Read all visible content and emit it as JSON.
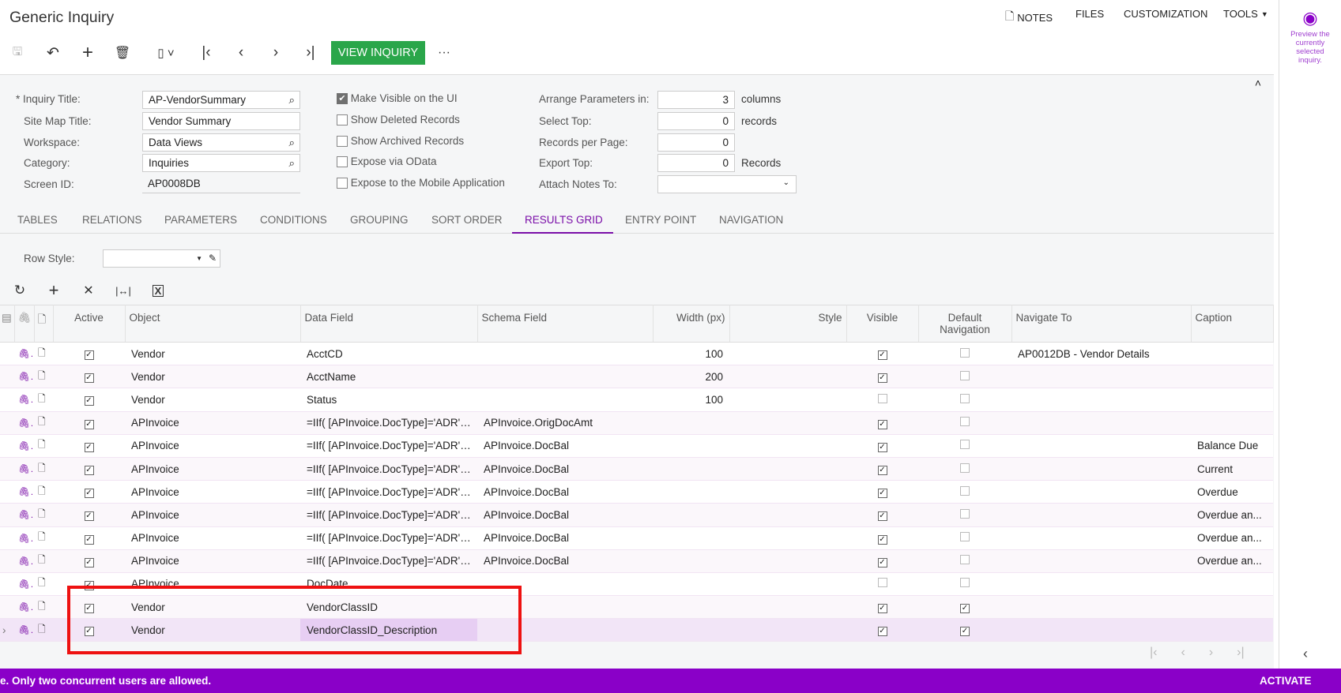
{
  "header": {
    "title": "Generic Inquiry",
    "notes": "NOTES",
    "files": "FILES",
    "customization": "CUSTOMIZATION",
    "tools": "TOOLS"
  },
  "toolbar": {
    "view_inquiry": "VIEW INQUIRY",
    "more": "···"
  },
  "right_panel": {
    "preview_text": "Preview the currently selected inquiry.",
    "accent": "#8a00c8"
  },
  "form": {
    "inquiry_title_label": "Inquiry Title:",
    "inquiry_title": "AP-VendorSummary",
    "site_map_title_label": "Site Map Title:",
    "site_map_title": "Vendor Summary",
    "workspace_label": "Workspace:",
    "workspace": "Data Views",
    "category_label": "Category:",
    "category": "Inquiries",
    "screen_id_label": "Screen ID:",
    "screen_id": "AP0008DB",
    "make_visible": "Make Visible on the UI",
    "show_deleted": "Show Deleted Records",
    "show_archived": "Show Archived Records",
    "expose_odata": "Expose via OData",
    "expose_mobile": "Expose to the Mobile Application",
    "arrange_label": "Arrange Parameters in:",
    "arrange": "3",
    "arrange_unit": "columns",
    "select_top_label": "Select Top:",
    "select_top": "0",
    "select_top_unit": "records",
    "records_per_page_label": "Records per Page:",
    "records_per_page": "0",
    "export_top_label": "Export Top:",
    "export_top": "0",
    "export_top_unit": "Records",
    "attach_notes_label": "Attach Notes To:",
    "attach_notes": ""
  },
  "tabs": [
    "TABLES",
    "RELATIONS",
    "PARAMETERS",
    "CONDITIONS",
    "GROUPING",
    "SORT ORDER",
    "RESULTS GRID",
    "ENTRY POINT",
    "NAVIGATION"
  ],
  "active_tab": "RESULTS GRID",
  "grid": {
    "row_style_label": "Row Style:",
    "row_style": "",
    "columns": [
      "Active",
      "Object",
      "Data Field",
      "Schema Field",
      "Width (px)",
      "Style",
      "Visible",
      "Default Navigation",
      "Navigate To",
      "Caption"
    ],
    "rows": [
      {
        "active": true,
        "object": "Vendor",
        "data_field": "AcctCD",
        "schema_field": "",
        "width": "100",
        "style": "",
        "visible": true,
        "default_nav": false,
        "navigate_to": "AP0012DB - Vendor Details",
        "caption": ""
      },
      {
        "active": true,
        "object": "Vendor",
        "data_field": "AcctName",
        "schema_field": "",
        "width": "200",
        "style": "",
        "visible": true,
        "default_nav": false,
        "navigate_to": "",
        "caption": ""
      },
      {
        "active": true,
        "object": "Vendor",
        "data_field": "Status",
        "schema_field": "",
        "width": "100",
        "style": "",
        "visible": false,
        "default_nav": false,
        "navigate_to": "",
        "caption": ""
      },
      {
        "active": true,
        "object": "APInvoice",
        "data_field": "=IIf( [APInvoice.DocType]='ADR',...",
        "schema_field": "APInvoice.OrigDocAmt",
        "width": "",
        "style": "",
        "visible": true,
        "default_nav": false,
        "navigate_to": "",
        "caption": ""
      },
      {
        "active": true,
        "object": "APInvoice",
        "data_field": "=IIf( [APInvoice.DocType]='ADR',...",
        "schema_field": "APInvoice.DocBal",
        "width": "",
        "style": "",
        "visible": true,
        "default_nav": false,
        "navigate_to": "",
        "caption": "Balance Due"
      },
      {
        "active": true,
        "object": "APInvoice",
        "data_field": "=IIf( [APInvoice.DocType]='ADR',...",
        "schema_field": "APInvoice.DocBal",
        "width": "",
        "style": "",
        "visible": true,
        "default_nav": false,
        "navigate_to": "",
        "caption": "Current"
      },
      {
        "active": true,
        "object": "APInvoice",
        "data_field": "=IIf( [APInvoice.DocType]='ADR',...",
        "schema_field": "APInvoice.DocBal",
        "width": "",
        "style": "",
        "visible": true,
        "default_nav": false,
        "navigate_to": "",
        "caption": "Overdue"
      },
      {
        "active": true,
        "object": "APInvoice",
        "data_field": "=IIf( [APInvoice.DocType]='ADR',...",
        "schema_field": "APInvoice.DocBal",
        "width": "",
        "style": "",
        "visible": true,
        "default_nav": false,
        "navigate_to": "",
        "caption": "Overdue an..."
      },
      {
        "active": true,
        "object": "APInvoice",
        "data_field": "=IIf( [APInvoice.DocType]='ADR',...",
        "schema_field": "APInvoice.DocBal",
        "width": "",
        "style": "",
        "visible": true,
        "default_nav": false,
        "navigate_to": "",
        "caption": "Overdue an..."
      },
      {
        "active": true,
        "object": "APInvoice",
        "data_field": "=IIf( [APInvoice.DocType]='ADR',...",
        "schema_field": "APInvoice.DocBal",
        "width": "",
        "style": "",
        "visible": true,
        "default_nav": false,
        "navigate_to": "",
        "caption": "Overdue an..."
      },
      {
        "active": true,
        "object": "APInvoice",
        "data_field": "DocDate",
        "schema_field": "",
        "width": "",
        "style": "",
        "visible": false,
        "default_nav": false,
        "navigate_to": "",
        "caption": ""
      },
      {
        "active": true,
        "object": "Vendor",
        "data_field": "VendorClassID",
        "schema_field": "",
        "width": "",
        "style": "",
        "visible": true,
        "default_nav": true,
        "navigate_to": "",
        "caption": ""
      },
      {
        "active": true,
        "object": "Vendor",
        "data_field": "VendorClassID_Description",
        "schema_field": "",
        "width": "",
        "style": "",
        "visible": true,
        "default_nav": true,
        "navigate_to": "",
        "caption": "",
        "selected": true
      }
    ]
  },
  "status_bar": {
    "message": "e. Only two concurrent users are allowed.",
    "activate": "ACTIVATE"
  }
}
